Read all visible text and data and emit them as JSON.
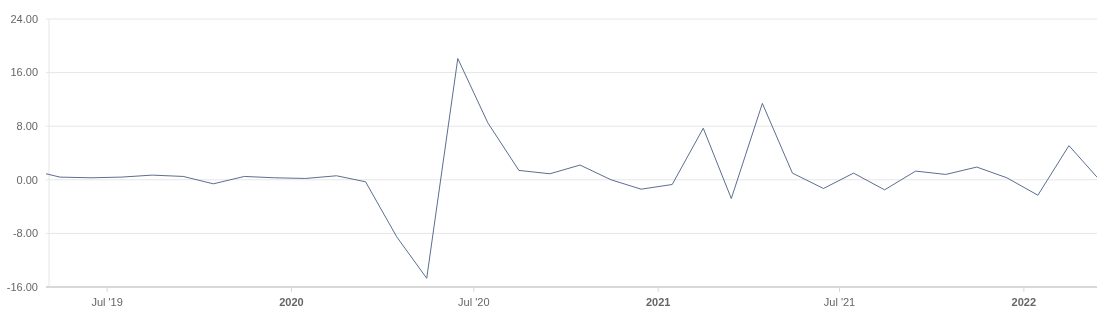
{
  "chart_data": {
    "type": "line",
    "x": [
      "2019-05-01",
      "2019-05-15",
      "2019-06-15",
      "2019-07-15",
      "2019-08-15",
      "2019-09-15",
      "2019-10-15",
      "2019-11-15",
      "2019-12-15",
      "2020-01-15",
      "2020-02-15",
      "2020-03-15",
      "2020-04-15",
      "2020-05-15",
      "2020-06-15",
      "2020-07-15",
      "2020-08-15",
      "2020-09-15",
      "2020-10-15",
      "2020-11-15",
      "2020-12-15",
      "2021-01-15",
      "2021-02-15",
      "2021-03-15",
      "2021-04-15",
      "2021-05-15",
      "2021-06-15",
      "2021-07-15",
      "2021-08-15",
      "2021-09-15",
      "2021-10-15",
      "2021-11-15",
      "2021-12-15",
      "2022-01-15",
      "2022-02-15",
      "2022-03-15"
    ],
    "series": [
      {
        "color": "#5b6f8f",
        "values": [
          0.9,
          0.4,
          0.3,
          0.4,
          0.7,
          0.5,
          -0.6,
          0.5,
          0.3,
          0.2,
          0.6,
          -0.3,
          -8.5,
          -14.7,
          18.1,
          8.5,
          1.4,
          0.9,
          2.2,
          0,
          -1.4,
          -0.7,
          7.7,
          -2.8,
          11.4,
          1.0,
          -1.3,
          1.0,
          -1.5,
          1.3,
          0.8,
          1.9,
          0.3,
          -2.3,
          5.1,
          0.4
        ]
      }
    ],
    "xlim": [
      "2019-05-01",
      "2022-03-15"
    ],
    "xticks": [
      {
        "value": "2019-07-01",
        "label": "Jul '19"
      },
      {
        "value": "2020-01-01",
        "label": "2020"
      },
      {
        "value": "2020-07-01",
        "label": "Jul '20"
      },
      {
        "value": "2021-01-01",
        "label": "2021"
      },
      {
        "value": "2021-07-01",
        "label": "Jul '21"
      },
      {
        "value": "2022-01-01",
        "label": "2022"
      }
    ],
    "ylim": [
      -16,
      24
    ],
    "yticks": [
      {
        "value": -16,
        "label": "-16.00"
      },
      {
        "value": -8,
        "label": "-8.00"
      },
      {
        "value": 0,
        "label": "0.00"
      },
      {
        "value": 8,
        "label": "8.00"
      },
      {
        "value": 16,
        "label": "16.00"
      },
      {
        "value": 24,
        "label": "24.00"
      }
    ],
    "grid": "y",
    "marker": "none",
    "line_style": "solid"
  }
}
